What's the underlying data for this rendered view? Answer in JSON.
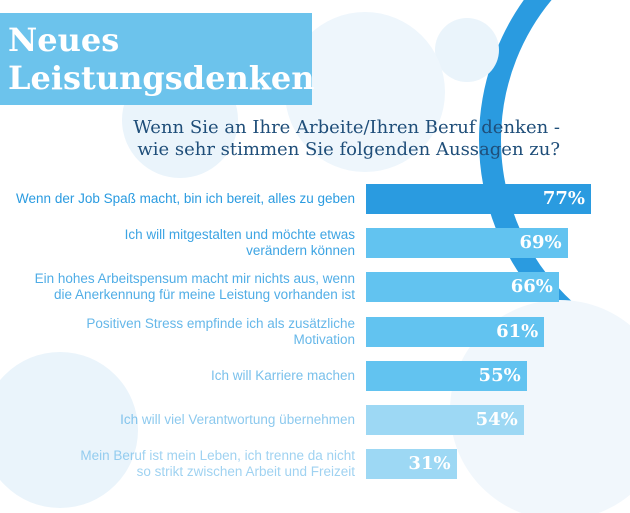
{
  "header": {
    "title_line1": "Neues",
    "title_line2": "Leistungsdenken",
    "subtitle_line1": "Wenn Sie an Ihre Arbeite/Ihren Beruf denken -",
    "subtitle_line2": "wie sehr stimmen Sie folgenden Aussagen zu?"
  },
  "colors": {
    "title_bg": "#6cc3ec",
    "subtitle_text": "#1f4e79",
    "bar_highlight": "#2a9be0",
    "bar_default": "#62c3f0",
    "bar_faded": "#9dd8f4"
  },
  "chart_data": {
    "type": "bar",
    "orientation": "horizontal",
    "title": "Wenn Sie an Ihre Arbeite/Ihren Beruf denken - wie sehr stimmen Sie folgenden Aussagen zu?",
    "categories": [
      [
        "Wenn der Job Spaß macht, bin ich bereit, alles zu geben"
      ],
      [
        "Ich will mitgestalten und möchte etwas",
        "verändern können"
      ],
      [
        "Ein hohes Arbeitspensum macht mir nichts aus, wenn",
        "die Anerkennung für meine Leistung vorhanden ist"
      ],
      [
        "Positiven Stress empfinde ich als zusätzliche",
        "Motivation"
      ],
      [
        "Ich will Karriere machen"
      ],
      [
        "Ich will viel Verantwortung übernehmen"
      ],
      [
        "Mein Beruf ist mein Leben, ich trenne da nicht",
        "so strikt zwischen Arbeit und Freizeit"
      ]
    ],
    "values": [
      77,
      69,
      66,
      61,
      55,
      54,
      31
    ],
    "value_labels": [
      "77%",
      "69%",
      "66%",
      "61%",
      "55%",
      "54%",
      "31%"
    ],
    "unit": "%",
    "highlight_index": 0
  }
}
